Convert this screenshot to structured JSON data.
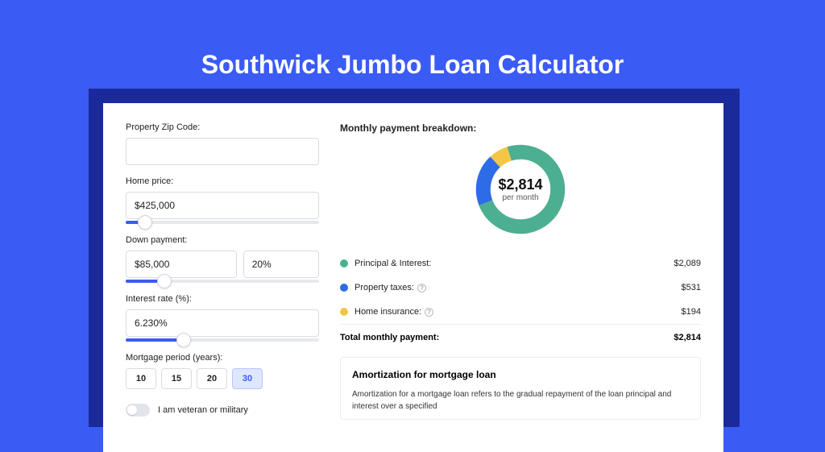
{
  "page": {
    "title": "Southwick Jumbo Loan Calculator",
    "bg_color": "#3b5bf5",
    "card_bg": "#ffffff",
    "shadow_color": "#1b2a9a"
  },
  "form": {
    "zip": {
      "label": "Property Zip Code:",
      "value": ""
    },
    "home_price": {
      "label": "Home price:",
      "value": "$425,000",
      "slider_pct": 10
    },
    "down_payment": {
      "label": "Down payment:",
      "amount": "$85,000",
      "pct": "20%",
      "slider_pct": 20
    },
    "interest": {
      "label": "Interest rate (%):",
      "value": "6.230%",
      "slider_pct": 30
    },
    "period": {
      "label": "Mortgage period (years):",
      "options": [
        "10",
        "15",
        "20",
        "30"
      ],
      "selected": "30"
    },
    "veteran": {
      "label": "I am veteran or military",
      "on": false
    }
  },
  "breakdown": {
    "title": "Monthly payment breakdown:",
    "center_amount": "$2,814",
    "center_sub": "per month",
    "items": [
      {
        "label": "Principal & Interest:",
        "value": "$2,089",
        "color": "#4caf91",
        "help": false,
        "pct": 74
      },
      {
        "label": "Property taxes:",
        "value": "$531",
        "color": "#2e6be6",
        "help": true,
        "pct": 19
      },
      {
        "label": "Home insurance:",
        "value": "$194",
        "color": "#f4c648",
        "help": true,
        "pct": 7
      }
    ],
    "total_label": "Total monthly payment:",
    "total_value": "$2,814"
  },
  "amort": {
    "title": "Amortization for mortgage loan",
    "text": "Amortization for a mortgage loan refers to the gradual repayment of the loan principal and interest over a specified"
  }
}
